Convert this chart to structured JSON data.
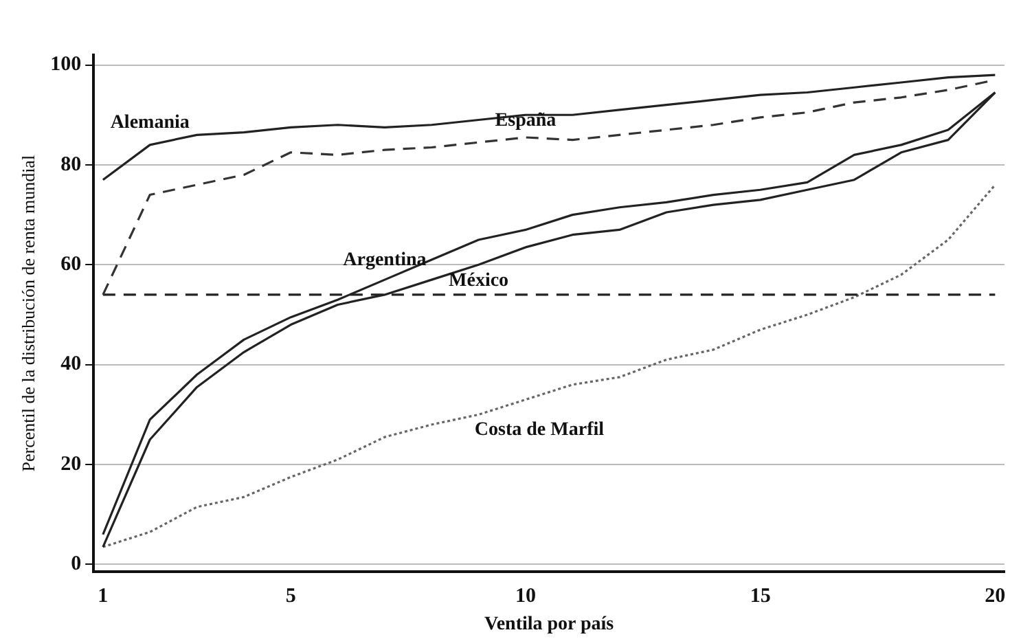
{
  "chart_data": {
    "type": "line",
    "xlabel": "Ventila por país",
    "ylabel": "Percentil de la distribución de renta mundial",
    "x": [
      1,
      2,
      3,
      4,
      5,
      6,
      7,
      8,
      9,
      10,
      11,
      12,
      13,
      14,
      15,
      16,
      17,
      18,
      19,
      20
    ],
    "series": [
      {
        "name": "Alemania",
        "color": "#222222",
        "line_style": "solid",
        "values": [
          77,
          84,
          86,
          86.5,
          87.5,
          88,
          87.5,
          88,
          89,
          90,
          90,
          91,
          92,
          93,
          94,
          94.5,
          95.5,
          96.5,
          97.5,
          98
        ]
      },
      {
        "name": "España",
        "color": "#333333",
        "line_style": "dashed",
        "values": [
          54,
          74,
          76,
          78,
          82.5,
          82,
          83,
          83.5,
          84.5,
          85.5,
          85,
          86,
          87,
          88,
          89.5,
          90.5,
          92.5,
          93.5,
          95,
          97
        ]
      },
      {
        "name": "Argentina",
        "color": "#222222",
        "line_style": "solid",
        "values": [
          6,
          29,
          38,
          45,
          49.5,
          53,
          57,
          61,
          65,
          67,
          70,
          71.5,
          72.5,
          74,
          75,
          76.5,
          82,
          84,
          87,
          94.5
        ]
      },
      {
        "color": "#222222",
        "line_style": "solid",
        "values": [
          3.5,
          25,
          35.5,
          42.5,
          48,
          52,
          54,
          57,
          60,
          63.5,
          66,
          67,
          70.5,
          72,
          73,
          75,
          77,
          82.5,
          85,
          94.5
        ]
      },
      {
        "name": "México",
        "color": "#222222",
        "line_style": "dashed",
        "values": [
          54,
          54,
          54,
          54,
          54,
          54,
          54,
          54,
          54,
          54,
          54,
          54,
          54,
          54,
          54,
          54,
          54,
          54,
          54,
          54
        ]
      },
      {
        "name": "Costa de Marfil",
        "color": "#666666",
        "line_style": "dotted",
        "values": [
          3.5,
          6.5,
          11.5,
          13.5,
          17.5,
          21,
          25.5,
          28,
          30,
          33,
          36,
          37.5,
          41,
          43,
          47,
          50,
          53.5,
          58,
          65,
          76
        ]
      }
    ],
    "xlim": [
      0.8,
      20.2
    ],
    "xticks": [
      1,
      5,
      10,
      15,
      20
    ],
    "ylim": [
      -1.5,
      102
    ],
    "yticks": [
      0,
      20,
      40,
      60,
      80,
      100
    ],
    "grid": "y",
    "legend": false,
    "marker": "none"
  }
}
